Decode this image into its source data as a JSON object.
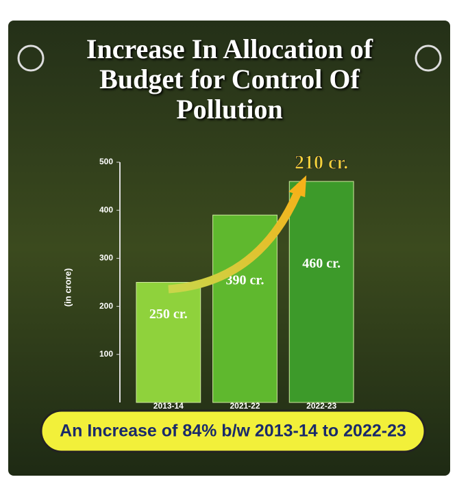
{
  "chart_data": {
    "type": "bar",
    "title": "Increase In Allocation of Budget for Control Of Pollution",
    "y_label": "(in crore)",
    "categories": [
      "2013-14",
      "2021-22",
      "2022-23"
    ],
    "values": [
      250,
      390,
      460
    ],
    "value_labels": [
      "250 cr.",
      "390 cr.",
      "460 cr."
    ],
    "annotation": "210 cr.",
    "footer": "An Increase of 84% b/w 2013-14 to 2022-23",
    "colors": [
      "#8fd23c",
      "#5fb82e",
      "#3d9a2a"
    ],
    "ylim": [
      0,
      500
    ],
    "yticks": [
      100,
      200,
      300,
      400,
      500
    ]
  }
}
